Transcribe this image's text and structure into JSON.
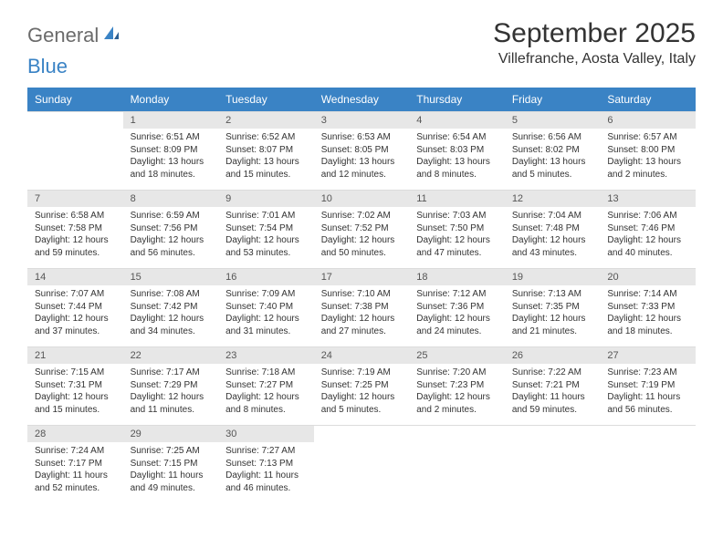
{
  "brand": {
    "part1": "General",
    "part2": "Blue"
  },
  "title": "September 2025",
  "location": "Villefranche, Aosta Valley, Italy",
  "colors": {
    "header_bg": "#3a83c5",
    "header_text": "#ffffff",
    "daynum_bg": "#e7e7e7",
    "text": "#333333",
    "logo_gray": "#6b6b6b",
    "logo_blue": "#3a83c5",
    "background": "#ffffff"
  },
  "weekdays": [
    "Sunday",
    "Monday",
    "Tuesday",
    "Wednesday",
    "Thursday",
    "Friday",
    "Saturday"
  ],
  "weeks": [
    {
      "nums": [
        "",
        "1",
        "2",
        "3",
        "4",
        "5",
        "6"
      ],
      "cells": [
        null,
        {
          "sunrise": "Sunrise: 6:51 AM",
          "sunset": "Sunset: 8:09 PM",
          "day1": "Daylight: 13 hours",
          "day2": "and 18 minutes."
        },
        {
          "sunrise": "Sunrise: 6:52 AM",
          "sunset": "Sunset: 8:07 PM",
          "day1": "Daylight: 13 hours",
          "day2": "and 15 minutes."
        },
        {
          "sunrise": "Sunrise: 6:53 AM",
          "sunset": "Sunset: 8:05 PM",
          "day1": "Daylight: 13 hours",
          "day2": "and 12 minutes."
        },
        {
          "sunrise": "Sunrise: 6:54 AM",
          "sunset": "Sunset: 8:03 PM",
          "day1": "Daylight: 13 hours",
          "day2": "and 8 minutes."
        },
        {
          "sunrise": "Sunrise: 6:56 AM",
          "sunset": "Sunset: 8:02 PM",
          "day1": "Daylight: 13 hours",
          "day2": "and 5 minutes."
        },
        {
          "sunrise": "Sunrise: 6:57 AM",
          "sunset": "Sunset: 8:00 PM",
          "day1": "Daylight: 13 hours",
          "day2": "and 2 minutes."
        }
      ]
    },
    {
      "nums": [
        "7",
        "8",
        "9",
        "10",
        "11",
        "12",
        "13"
      ],
      "cells": [
        {
          "sunrise": "Sunrise: 6:58 AM",
          "sunset": "Sunset: 7:58 PM",
          "day1": "Daylight: 12 hours",
          "day2": "and 59 minutes."
        },
        {
          "sunrise": "Sunrise: 6:59 AM",
          "sunset": "Sunset: 7:56 PM",
          "day1": "Daylight: 12 hours",
          "day2": "and 56 minutes."
        },
        {
          "sunrise": "Sunrise: 7:01 AM",
          "sunset": "Sunset: 7:54 PM",
          "day1": "Daylight: 12 hours",
          "day2": "and 53 minutes."
        },
        {
          "sunrise": "Sunrise: 7:02 AM",
          "sunset": "Sunset: 7:52 PM",
          "day1": "Daylight: 12 hours",
          "day2": "and 50 minutes."
        },
        {
          "sunrise": "Sunrise: 7:03 AM",
          "sunset": "Sunset: 7:50 PM",
          "day1": "Daylight: 12 hours",
          "day2": "and 47 minutes."
        },
        {
          "sunrise": "Sunrise: 7:04 AM",
          "sunset": "Sunset: 7:48 PM",
          "day1": "Daylight: 12 hours",
          "day2": "and 43 minutes."
        },
        {
          "sunrise": "Sunrise: 7:06 AM",
          "sunset": "Sunset: 7:46 PM",
          "day1": "Daylight: 12 hours",
          "day2": "and 40 minutes."
        }
      ]
    },
    {
      "nums": [
        "14",
        "15",
        "16",
        "17",
        "18",
        "19",
        "20"
      ],
      "cells": [
        {
          "sunrise": "Sunrise: 7:07 AM",
          "sunset": "Sunset: 7:44 PM",
          "day1": "Daylight: 12 hours",
          "day2": "and 37 minutes."
        },
        {
          "sunrise": "Sunrise: 7:08 AM",
          "sunset": "Sunset: 7:42 PM",
          "day1": "Daylight: 12 hours",
          "day2": "and 34 minutes."
        },
        {
          "sunrise": "Sunrise: 7:09 AM",
          "sunset": "Sunset: 7:40 PM",
          "day1": "Daylight: 12 hours",
          "day2": "and 31 minutes."
        },
        {
          "sunrise": "Sunrise: 7:10 AM",
          "sunset": "Sunset: 7:38 PM",
          "day1": "Daylight: 12 hours",
          "day2": "and 27 minutes."
        },
        {
          "sunrise": "Sunrise: 7:12 AM",
          "sunset": "Sunset: 7:36 PM",
          "day1": "Daylight: 12 hours",
          "day2": "and 24 minutes."
        },
        {
          "sunrise": "Sunrise: 7:13 AM",
          "sunset": "Sunset: 7:35 PM",
          "day1": "Daylight: 12 hours",
          "day2": "and 21 minutes."
        },
        {
          "sunrise": "Sunrise: 7:14 AM",
          "sunset": "Sunset: 7:33 PM",
          "day1": "Daylight: 12 hours",
          "day2": "and 18 minutes."
        }
      ]
    },
    {
      "nums": [
        "21",
        "22",
        "23",
        "24",
        "25",
        "26",
        "27"
      ],
      "cells": [
        {
          "sunrise": "Sunrise: 7:15 AM",
          "sunset": "Sunset: 7:31 PM",
          "day1": "Daylight: 12 hours",
          "day2": "and 15 minutes."
        },
        {
          "sunrise": "Sunrise: 7:17 AM",
          "sunset": "Sunset: 7:29 PM",
          "day1": "Daylight: 12 hours",
          "day2": "and 11 minutes."
        },
        {
          "sunrise": "Sunrise: 7:18 AM",
          "sunset": "Sunset: 7:27 PM",
          "day1": "Daylight: 12 hours",
          "day2": "and 8 minutes."
        },
        {
          "sunrise": "Sunrise: 7:19 AM",
          "sunset": "Sunset: 7:25 PM",
          "day1": "Daylight: 12 hours",
          "day2": "and 5 minutes."
        },
        {
          "sunrise": "Sunrise: 7:20 AM",
          "sunset": "Sunset: 7:23 PM",
          "day1": "Daylight: 12 hours",
          "day2": "and 2 minutes."
        },
        {
          "sunrise": "Sunrise: 7:22 AM",
          "sunset": "Sunset: 7:21 PM",
          "day1": "Daylight: 11 hours",
          "day2": "and 59 minutes."
        },
        {
          "sunrise": "Sunrise: 7:23 AM",
          "sunset": "Sunset: 7:19 PM",
          "day1": "Daylight: 11 hours",
          "day2": "and 56 minutes."
        }
      ]
    },
    {
      "nums": [
        "28",
        "29",
        "30",
        "",
        "",
        "",
        ""
      ],
      "cells": [
        {
          "sunrise": "Sunrise: 7:24 AM",
          "sunset": "Sunset: 7:17 PM",
          "day1": "Daylight: 11 hours",
          "day2": "and 52 minutes."
        },
        {
          "sunrise": "Sunrise: 7:25 AM",
          "sunset": "Sunset: 7:15 PM",
          "day1": "Daylight: 11 hours",
          "day2": "and 49 minutes."
        },
        {
          "sunrise": "Sunrise: 7:27 AM",
          "sunset": "Sunset: 7:13 PM",
          "day1": "Daylight: 11 hours",
          "day2": "and 46 minutes."
        },
        null,
        null,
        null,
        null
      ]
    }
  ]
}
